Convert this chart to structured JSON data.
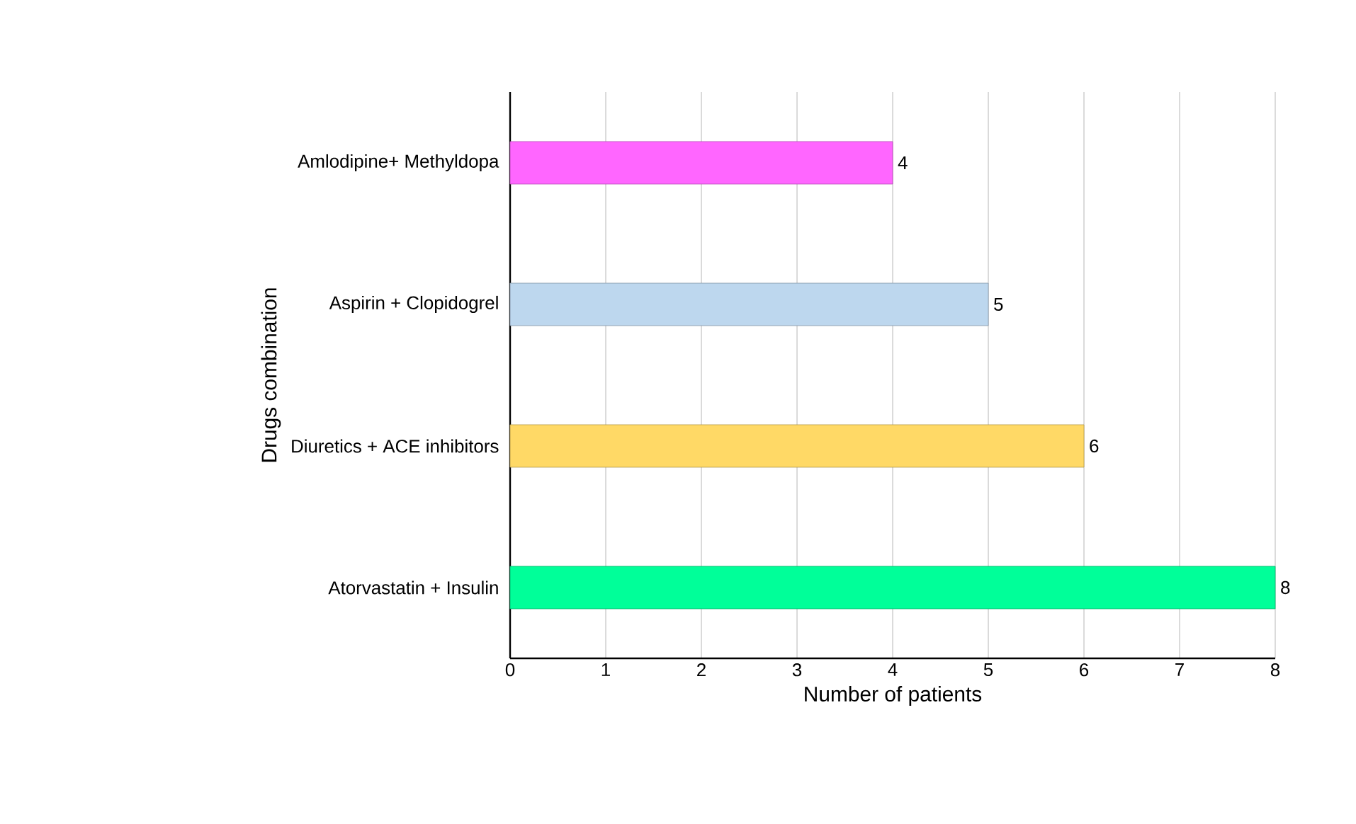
{
  "chart_data": {
    "type": "bar",
    "orientation": "horizontal",
    "xlabel": "Number of patients",
    "ylabel": "Drugs combination",
    "categories": [
      "Amlodipine+ Methyldopa",
      "Aspirin + Clopidogrel",
      "Diuretics + ACE inhibitors",
      "Atorvastatin + Insulin"
    ],
    "values": [
      4,
      5,
      6,
      8
    ],
    "colors": [
      "#ff66ff",
      "#bdd7ee",
      "#ffd966",
      "#00ff99"
    ],
    "xlim": [
      0,
      8
    ],
    "xticks": [
      0,
      1,
      2,
      3,
      4,
      5,
      6,
      7,
      8
    ],
    "grid": "x",
    "data_labels": true
  }
}
